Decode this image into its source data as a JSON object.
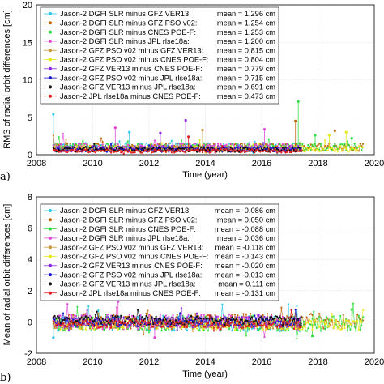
{
  "chart_data": [
    {
      "type": "scatter",
      "panel_label": "a)",
      "xlabel": "Time (year)",
      "ylabel": "RMS of radial orbit differences [cm]",
      "xlim": [
        2008,
        2020
      ],
      "ylim": [
        0,
        20
      ],
      "xticks": [
        "2008",
        "2010",
        "2012",
        "2014",
        "2016",
        "2018",
        "2020"
      ],
      "yticks": [
        "0",
        "5",
        "10",
        "15",
        "20"
      ],
      "grid": true,
      "legend_position": "top-left",
      "series": [
        {
          "name": "Jason-2 DGFI SLR minus GFZ VER13:",
          "mean_label": "mean = 1.296 cm",
          "color": "#2ec8e8",
          "x_range": [
            2008.6,
            2017.4
          ],
          "center": 1.1,
          "spread": 0.5,
          "spikes": [
            [
              2008.6,
              5.4
            ],
            [
              2011.3,
              3.0
            ]
          ]
        },
        {
          "name": "Jason-2 DGFI SLR minus GFZ PSO v02:",
          "mean_label": "mean = 1.254 cm",
          "color": "#c46a10",
          "x_range": [
            2008.6,
            2019.6
          ],
          "center": 1.0,
          "spread": 0.5,
          "spikes": [
            [
              2017.2,
              4.5
            ],
            [
              2018.6,
              3.2
            ]
          ]
        },
        {
          "name": "Jason-2 DGFI SLR minus CNES POE-F:",
          "mean_label": "mean = 1.253 cm",
          "color": "#33dd44",
          "x_range": [
            2008.6,
            2019.6
          ],
          "center": 1.0,
          "spread": 0.5,
          "spikes": [
            [
              2017.3,
              7.1
            ],
            [
              2017.9,
              2.6
            ],
            [
              2019.2,
              2.2
            ]
          ]
        },
        {
          "name": "Jason-2 DGFI SLR minus JPL rlse18a:",
          "mean_label": "mean = 1.200 cm",
          "color": "#e04ad6",
          "x_range": [
            2008.6,
            2017.4
          ],
          "center": 1.0,
          "spread": 0.5,
          "spikes": [
            [
              2010.8,
              3.6
            ],
            [
              2016.1,
              3.4
            ]
          ]
        },
        {
          "name": "Jason-2 GFZ PSO v02 minus GFZ VER13:",
          "mean_label": "mean = 0.815 cm",
          "color": "#c89a3c",
          "x_range": [
            2008.6,
            2017.4
          ],
          "center": 0.8,
          "spread": 0.4,
          "spikes": [
            [
              2013.9,
              3.3
            ]
          ]
        },
        {
          "name": "Jason-2 GFZ PSO v02 minus CNES POE-F:",
          "mean_label": "mean = 0.804 cm",
          "color": "#e8e820",
          "x_range": [
            2008.6,
            2019.6
          ],
          "center": 0.8,
          "spread": 0.4,
          "spikes": [
            [
              2018.4,
              2.6
            ],
            [
              2019.0,
              3.0
            ]
          ]
        },
        {
          "name": "Jason-2 GFZ VER13 minus CNES POE-F:",
          "mean_label": "mean = 0.779 cm",
          "color": "#8a2be2",
          "x_range": [
            2008.6,
            2017.4
          ],
          "center": 0.8,
          "spread": 0.4,
          "spikes": [
            [
              2013.3,
              4.6
            ],
            [
              2012.4,
              2.9
            ]
          ]
        },
        {
          "name": "Jason-2 GFZ PSO v02 minus JPL rlse18a:",
          "mean_label": "mean = 0.715 cm",
          "color": "#1a1acc",
          "x_range": [
            2008.6,
            2017.4
          ],
          "center": 0.7,
          "spread": 0.35,
          "spikes": []
        },
        {
          "name": "Jason-2 GFZ VER13 minus JPL rlse18a:",
          "mean_label": "mean = 0.691 cm",
          "color": "#111111",
          "x_range": [
            2008.6,
            2017.4
          ],
          "center": 0.7,
          "spread": 0.35,
          "spikes": []
        },
        {
          "name": "Jason-2 JPL rlse18a minus CNES POE-F:",
          "mean_label": "mean = 0.473 cm",
          "color": "#e02020",
          "x_range": [
            2008.6,
            2017.4
          ],
          "center": 0.5,
          "spread": 0.25,
          "spikes": [
            [
              2013.4,
              2.4
            ]
          ]
        }
      ]
    },
    {
      "type": "scatter",
      "panel_label": "b)",
      "xlabel": "Time (year)",
      "ylabel": "Mean of radial orbit differences [cm]",
      "xlim": [
        2008,
        2020
      ],
      "ylim": [
        -2,
        8
      ],
      "xticks": [
        "2008",
        "2010",
        "2012",
        "2014",
        "2016",
        "2018",
        "2020"
      ],
      "yticks": [
        "-2",
        "0",
        "2",
        "4",
        "6",
        "8"
      ],
      "grid": true,
      "legend_position": "top-left",
      "series": [
        {
          "name": "Jason-2 DGFI SLR minus GFZ VER13:",
          "mean_label": "mean = -0.086 cm",
          "color": "#2ec8e8",
          "x_range": [
            2008.6,
            2017.4
          ],
          "center": -0.1,
          "spread": 0.5,
          "spikes": [
            [
              2008.6,
              -1.0
            ]
          ]
        },
        {
          "name": "Jason-2 DGFI SLR minus GFZ PSO v02:",
          "mean_label": "mean = 0.050 cm",
          "color": "#c46a10",
          "x_range": [
            2008.6,
            2019.6
          ],
          "center": 0.05,
          "spread": 0.5,
          "spikes": []
        },
        {
          "name": "Jason-2 DGFI SLR minus CNES POE-F:",
          "mean_label": "mean = -0.088 cm",
          "color": "#33dd44",
          "x_range": [
            2008.6,
            2019.6
          ],
          "center": -0.1,
          "spread": 0.5,
          "spikes": [
            [
              2019.2,
              0.8
            ],
            [
              2017.8,
              -0.9
            ]
          ]
        },
        {
          "name": "Jason-2 DGFI SLR minus JPL rlse18a:",
          "mean_label": "mean = 0.036 cm",
          "color": "#e04ad6",
          "x_range": [
            2008.6,
            2017.4
          ],
          "center": 0.0,
          "spread": 0.5,
          "spikes": [
            [
              2010.9,
              1.3
            ],
            [
              2012.2,
              -1.0
            ]
          ]
        },
        {
          "name": "Jason-2 GFZ PSO v02 minus GFZ VER13:",
          "mean_label": "mean = -0.118 cm",
          "color": "#c89a3c",
          "x_range": [
            2008.6,
            2017.4
          ],
          "center": -0.1,
          "spread": 0.35,
          "spikes": []
        },
        {
          "name": "Jason-2 GFZ PSO v02 minus CNES POE-F:",
          "mean_label": "mean = -0.143 cm",
          "color": "#e8e820",
          "x_range": [
            2008.6,
            2019.6
          ],
          "center": -0.15,
          "spread": 0.35,
          "spikes": []
        },
        {
          "name": "Jason-2 GFZ VER13 minus CNES POE-F:",
          "mean_label": "mean = -0.020 cm",
          "color": "#8a2be2",
          "x_range": [
            2008.6,
            2017.4
          ],
          "center": 0.0,
          "spread": 0.35,
          "spikes": []
        },
        {
          "name": "Jason-2 GFZ PSO v02 minus JPL rlse18a:",
          "mean_label": "mean = -0.013 cm",
          "color": "#1a1acc",
          "x_range": [
            2008.6,
            2017.4
          ],
          "center": 0.0,
          "spread": 0.3,
          "spikes": []
        },
        {
          "name": "Jason-2 GFZ VER13 minus JPL rlse18a:",
          "mean_label": "mean = 0.111 cm",
          "color": "#111111",
          "x_range": [
            2008.6,
            2017.4
          ],
          "center": 0.1,
          "spread": 0.3,
          "spikes": []
        },
        {
          "name": "Jason-2 JPL rlse18a minus CNES POE-F:",
          "mean_label": "mean = -0.131 cm",
          "color": "#e02020",
          "x_range": [
            2008.6,
            2017.4
          ],
          "center": -0.13,
          "spread": 0.25,
          "spikes": []
        }
      ]
    }
  ]
}
